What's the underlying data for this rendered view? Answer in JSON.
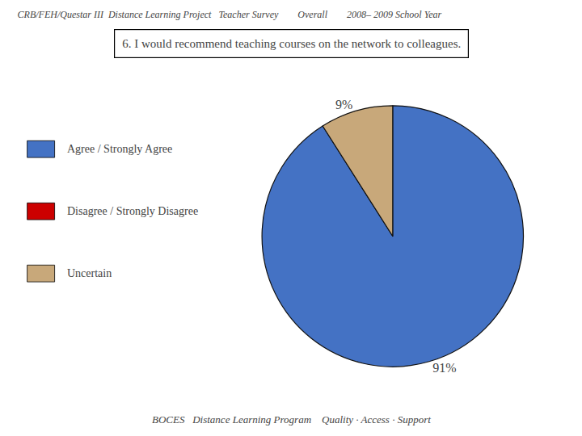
{
  "chart_data": {
    "type": "pie",
    "title": "CRB/FEH/Questar III  Distance Learning Project   Teacher Survey        Overall        2008– 2009 School Year",
    "subtitle": "6. I would recommend teaching courses on the network to colleagues.",
    "annotations": [
      "BOCES   Distance Learning Program    Quality · Access · Support"
    ],
    "categories": [
      "Agree / Strongly Agree",
      "Disagree / Strongly Disagree",
      "Uncertain"
    ],
    "values": [
      91,
      null,
      9
    ],
    "value_labels": [
      "91%",
      null,
      "9%"
    ],
    "colors": [
      "#4472C4",
      "#CC0000",
      "#C8A87A"
    ],
    "data_labels": true
  }
}
